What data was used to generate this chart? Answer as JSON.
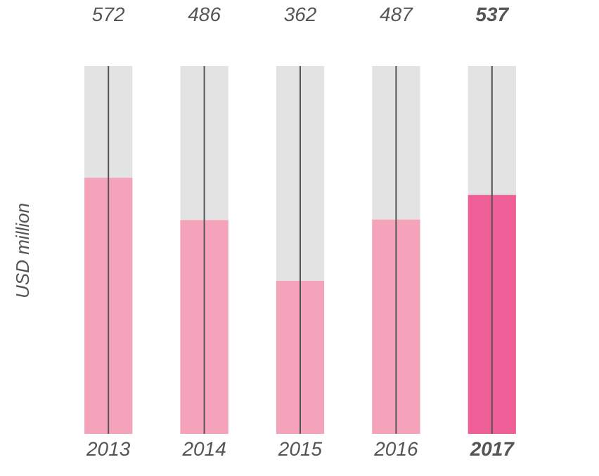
{
  "chart_data": {
    "type": "bar",
    "ylabel": "USD million",
    "categories": [
      "2013",
      "2014",
      "2015",
      "2016",
      "2017"
    ],
    "values": [
      572,
      486,
      362,
      487,
      537
    ],
    "colors": [
      "#f4a3bb",
      "#f4a3bb",
      "#f4a3bb",
      "#f4a3bb",
      "#ee5f97"
    ],
    "ylim": [
      50,
      800
    ],
    "data_labels": true,
    "tick_labels": "x",
    "grid": "x"
  }
}
